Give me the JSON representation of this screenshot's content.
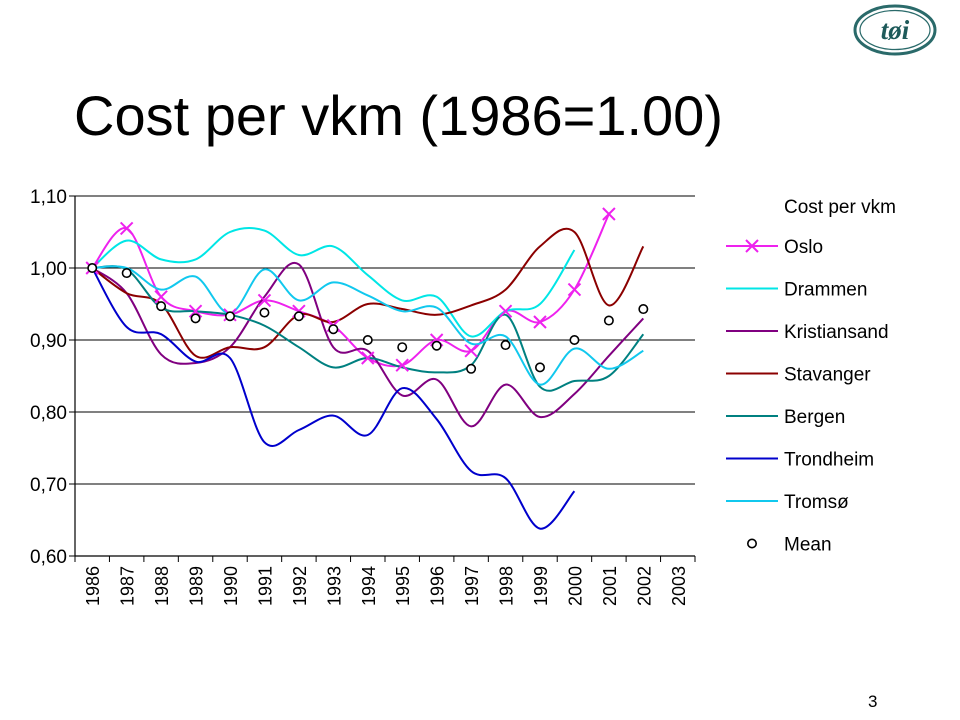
{
  "slide": {
    "title": "Cost per vkm (1986=1.00)",
    "page_number": "3",
    "logo_text": "tøi"
  },
  "chart_data": {
    "type": "line",
    "title": "",
    "xlabel": "",
    "ylabel": "",
    "ylim": [
      0.6,
      1.1
    ],
    "y_ticks": [
      "0,60",
      "0,70",
      "0,80",
      "0,90",
      "1,00",
      "1,10"
    ],
    "grid": "horizontal",
    "legend_position": "right",
    "legend_title": "Cost per vkm",
    "categories": [
      "1986",
      "1987",
      "1988",
      "1989",
      "1990",
      "1991",
      "1992",
      "1993",
      "1994",
      "1995",
      "1996",
      "1997",
      "1998",
      "1999",
      "2000",
      "2001",
      "2002",
      "2003"
    ],
    "series": [
      {
        "name": "Oslo",
        "color": "#ee22ee",
        "marker": "x",
        "values": [
          1.0,
          1.055,
          0.96,
          0.94,
          0.935,
          0.955,
          0.94,
          0.92,
          0.875,
          0.865,
          0.9,
          0.885,
          0.94,
          0.925,
          0.97,
          1.075,
          null,
          null
        ]
      },
      {
        "name": "Drammen",
        "color": "#00e6e6",
        "marker": "none",
        "values": [
          1.0,
          1.038,
          1.012,
          1.012,
          1.05,
          1.052,
          1.018,
          1.03,
          0.99,
          0.955,
          0.96,
          0.905,
          0.94,
          0.95,
          1.025,
          null,
          null,
          null
        ]
      },
      {
        "name": "Kristiansand",
        "color": "#800080",
        "marker": "none",
        "values": [
          1.0,
          0.965,
          0.88,
          0.868,
          0.89,
          0.96,
          1.005,
          0.89,
          0.885,
          0.823,
          0.845,
          0.78,
          0.838,
          0.793,
          0.825,
          0.878,
          0.93,
          null
        ]
      },
      {
        "name": "Stavanger",
        "color": "#8b0000",
        "marker": "none",
        "values": [
          1.0,
          0.965,
          0.95,
          0.878,
          0.89,
          0.89,
          0.935,
          0.925,
          0.95,
          0.943,
          0.935,
          0.948,
          0.97,
          1.03,
          1.05,
          0.948,
          1.03,
          null
        ]
      },
      {
        "name": "Bergen",
        "color": "#008080",
        "marker": "none",
        "values": [
          1.0,
          0.998,
          0.945,
          0.94,
          0.935,
          0.92,
          0.89,
          0.862,
          0.875,
          0.862,
          0.855,
          0.865,
          0.935,
          0.835,
          0.843,
          0.85,
          0.908,
          null
        ]
      },
      {
        "name": "Trondheim",
        "color": "#0000cc",
        "marker": "none",
        "values": [
          1.0,
          0.918,
          0.908,
          0.87,
          0.875,
          0.758,
          0.775,
          0.795,
          0.768,
          0.833,
          0.79,
          0.718,
          0.708,
          0.638,
          0.69,
          null,
          null,
          null
        ]
      },
      {
        "name": "Tromsø",
        "color": "#11c8ee",
        "marker": "none",
        "values": [
          1.0,
          1.0,
          0.97,
          0.988,
          0.937,
          0.998,
          0.955,
          0.98,
          0.962,
          0.94,
          0.945,
          0.895,
          0.905,
          0.838,
          0.888,
          0.86,
          0.885,
          null
        ]
      },
      {
        "name": "Mean",
        "color": "#000000",
        "marker": "circle",
        "values": [
          1.0,
          0.993,
          0.947,
          0.93,
          0.933,
          0.938,
          0.933,
          0.915,
          0.9,
          0.89,
          0.892,
          0.86,
          0.893,
          0.862,
          0.9,
          0.927,
          0.943,
          null
        ]
      }
    ]
  }
}
